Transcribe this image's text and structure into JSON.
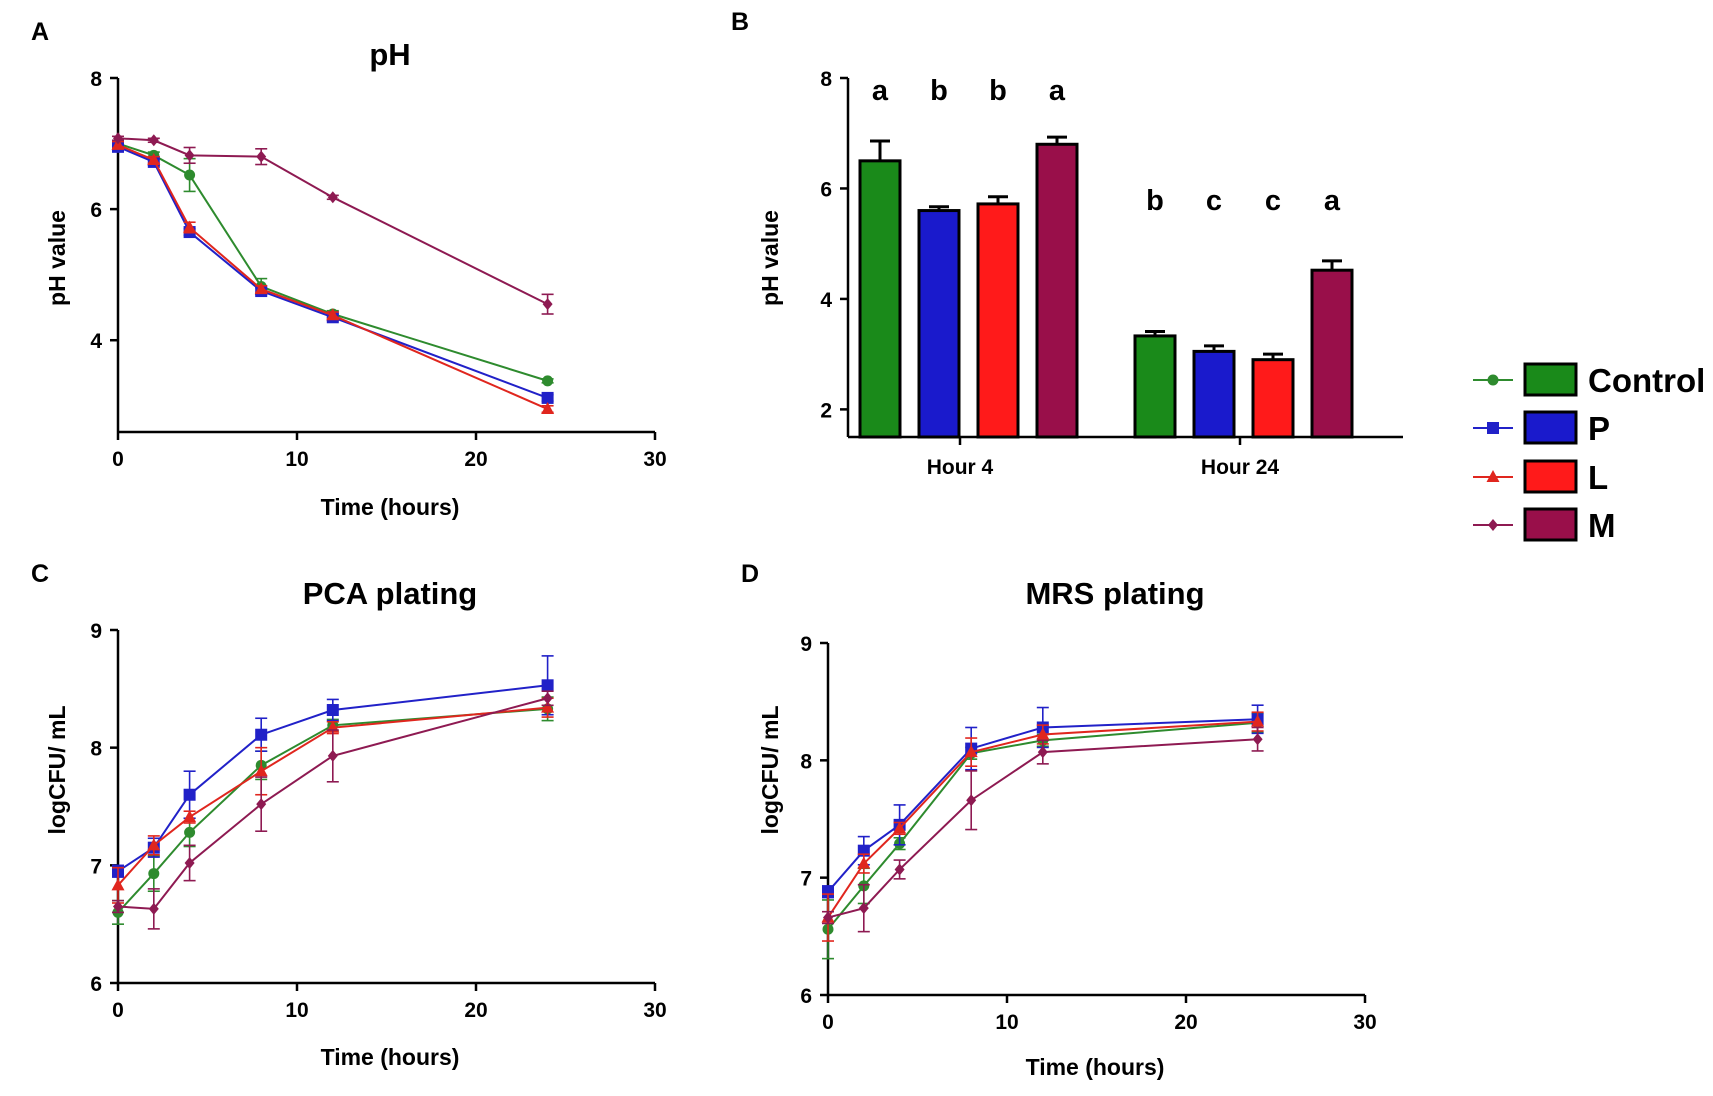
{
  "colors": {
    "Control": "#1a8a1a",
    "P": "#1a1acc",
    "L": "#ff1a1a",
    "M": "#990f4a",
    "line_Control": "#2e8b2e",
    "line_P": "#2121c8",
    "line_L": "#e0261e",
    "line_M": "#8e1a52"
  },
  "legend": {
    "entries": [
      "Control",
      "P",
      "L",
      "M"
    ]
  },
  "chart_data": [
    {
      "panel_label": "A",
      "type": "line",
      "title": "pH",
      "xlabel": "Time (hours)",
      "ylabel": "pH value",
      "xlim": [
        0,
        30
      ],
      "ylim": [
        2.6,
        8
      ],
      "xticks": [
        0,
        10,
        20,
        30
      ],
      "yticks": [
        4,
        6,
        8
      ],
      "x": [
        0,
        2,
        4,
        8,
        12,
        24
      ],
      "series": [
        {
          "name": "Control",
          "marker": "circle",
          "values": [
            7.0,
            6.82,
            6.52,
            4.82,
            4.4,
            3.38
          ],
          "errors": [
            0.05,
            0.05,
            0.25,
            0.12,
            0.05,
            0.03
          ]
        },
        {
          "name": "P",
          "marker": "square",
          "values": [
            6.95,
            6.72,
            5.65,
            4.75,
            4.35,
            3.12
          ],
          "errors": [
            0.05,
            0.05,
            0.05,
            0.05,
            0.05,
            0.05
          ]
        },
        {
          "name": "L",
          "marker": "triangle",
          "values": [
            6.98,
            6.75,
            5.72,
            4.78,
            4.38,
            2.95
          ],
          "errors": [
            0.05,
            0.05,
            0.08,
            0.05,
            0.05,
            0.05
          ]
        },
        {
          "name": "M",
          "marker": "diamond",
          "values": [
            7.08,
            7.05,
            6.82,
            6.8,
            6.18,
            4.55
          ],
          "errors": [
            0.03,
            0.03,
            0.12,
            0.12,
            0.03,
            0.15
          ]
        }
      ]
    },
    {
      "panel_label": "B",
      "type": "bar",
      "title": "",
      "xlabel": "",
      "ylabel": "pH value",
      "ylim": [
        1.5,
        8
      ],
      "yticks": [
        2,
        4,
        6,
        8
      ],
      "categories": [
        "Hour  4",
        "Hour 24"
      ],
      "series": [
        {
          "name": "Control",
          "values": [
            6.5,
            3.33
          ],
          "errors": [
            0.36,
            0.08
          ],
          "letters": [
            "a",
            "b"
          ]
        },
        {
          "name": "P",
          "values": [
            5.6,
            3.05
          ],
          "errors": [
            0.07,
            0.1
          ],
          "letters": [
            "b",
            "c"
          ]
        },
        {
          "name": "L",
          "values": [
            5.72,
            2.9
          ],
          "errors": [
            0.13,
            0.1
          ],
          "letters": [
            "b",
            "c"
          ]
        },
        {
          "name": "M",
          "values": [
            6.8,
            4.52
          ],
          "errors": [
            0.13,
            0.17
          ],
          "letters": [
            "a",
            "a"
          ]
        }
      ]
    },
    {
      "panel_label": "C",
      "type": "line",
      "title": "PCA plating",
      "xlabel": "Time (hours)",
      "ylabel": "logCFU/ mL",
      "xlim": [
        0,
        30
      ],
      "ylim": [
        6,
        9
      ],
      "xticks": [
        0,
        10,
        20,
        30
      ],
      "yticks": [
        6,
        7,
        8,
        9
      ],
      "x": [
        0,
        2,
        4,
        8,
        12,
        24
      ],
      "series": [
        {
          "name": "Control",
          "marker": "circle",
          "values": [
            6.6,
            6.93,
            7.28,
            7.85,
            8.19,
            8.33
          ],
          "errors": [
            0.1,
            0.15,
            0.12,
            0.12,
            0.05,
            0.1
          ]
        },
        {
          "name": "P",
          "marker": "square",
          "values": [
            6.95,
            7.15,
            7.6,
            8.11,
            8.32,
            8.53
          ],
          "errors": [
            0.05,
            0.08,
            0.2,
            0.14,
            0.09,
            0.25
          ]
        },
        {
          "name": "L",
          "marker": "triangle",
          "values": [
            6.83,
            7.17,
            7.41,
            7.8,
            8.17,
            8.34
          ],
          "errors": [
            0.15,
            0.08,
            0.05,
            0.2,
            0.05,
            0.08
          ]
        },
        {
          "name": "M",
          "marker": "diamond",
          "values": [
            6.65,
            6.63,
            7.02,
            7.52,
            7.93,
            8.42
          ],
          "errors": [
            0.05,
            0.17,
            0.15,
            0.23,
            0.22,
            0.06
          ]
        }
      ]
    },
    {
      "panel_label": "D",
      "type": "line",
      "title": "MRS plating",
      "xlabel": "Time (hours)",
      "ylabel": "logCFU/ mL",
      "xlim": [
        0,
        30
      ],
      "ylim": [
        6,
        9
      ],
      "xticks": [
        0,
        10,
        20,
        30
      ],
      "yticks": [
        6,
        7,
        8,
        9
      ],
      "x": [
        0,
        2,
        4,
        8,
        12,
        24
      ],
      "series": [
        {
          "name": "Control",
          "marker": "circle",
          "values": [
            6.56,
            6.93,
            7.29,
            8.06,
            8.17,
            8.32
          ],
          "errors": [
            0.25,
            0.15,
            0.05,
            0.05,
            0.05,
            0.08
          ]
        },
        {
          "name": "P",
          "marker": "square",
          "values": [
            6.88,
            7.23,
            7.45,
            8.1,
            8.28,
            8.35
          ],
          "errors": [
            0.05,
            0.12,
            0.17,
            0.18,
            0.17,
            0.12
          ]
        },
        {
          "name": "L",
          "marker": "triangle",
          "values": [
            6.66,
            7.12,
            7.42,
            8.07,
            8.22,
            8.33
          ],
          "errors": [
            0.2,
            0.08,
            0.05,
            0.12,
            0.08,
            0.08
          ]
        },
        {
          "name": "M",
          "marker": "diamond",
          "values": [
            6.66,
            6.74,
            7.07,
            7.66,
            8.07,
            8.18
          ],
          "errors": [
            0.05,
            0.2,
            0.08,
            0.25,
            0.1,
            0.1
          ]
        }
      ]
    }
  ]
}
